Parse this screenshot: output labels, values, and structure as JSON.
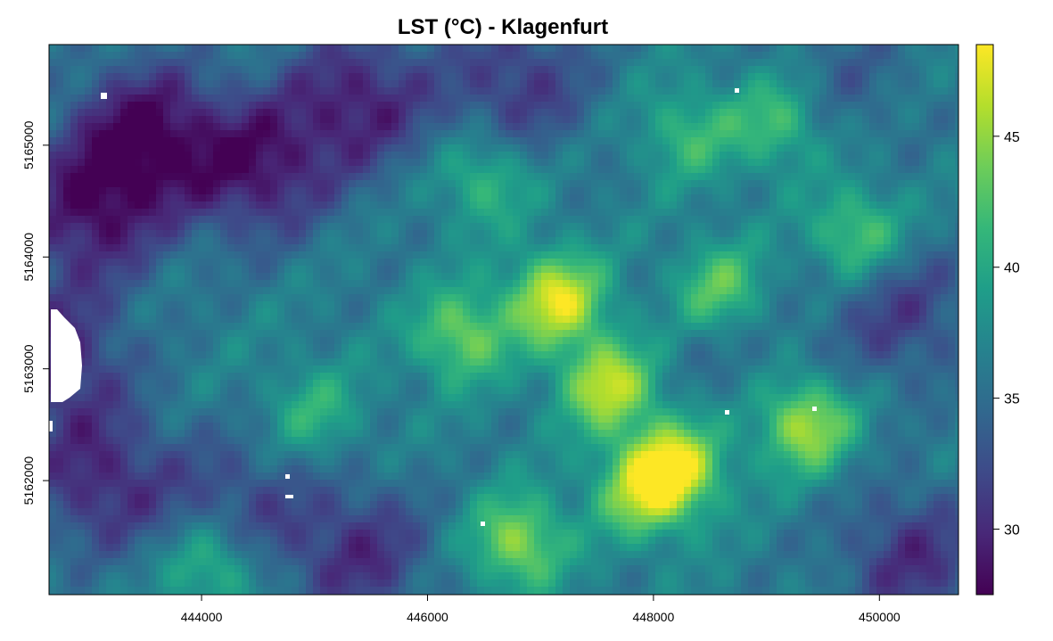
{
  "chart_data": {
    "type": "heatmap",
    "title": "LST (°C) - Klagenfurt",
    "xlabel": "",
    "ylabel": "",
    "xlim": [
      442650,
      450700
    ],
    "ylim": [
      5160980,
      5165900
    ],
    "x_ticks": [
      444000,
      446000,
      448000,
      450000
    ],
    "y_ticks": [
      5162000,
      5163000,
      5164000,
      5165000
    ],
    "x_tick_labels": [
      "444000",
      "446000",
      "448000",
      "450000"
    ],
    "y_tick_labels": [
      "5162000",
      "5163000",
      "5164000",
      "5165000"
    ],
    "colorbar": {
      "palette": "viridis",
      "range": [
        27.5,
        48.5
      ],
      "ticks": [
        30,
        35,
        40,
        45
      ],
      "tick_labels": [
        "30",
        "35",
        "40",
        "45"
      ],
      "colors": [
        "#440154",
        "#482878",
        "#3E4A89",
        "#31688E",
        "#26828E",
        "#1F9E89",
        "#35B779",
        "#6DCD59",
        "#B4DE2C",
        "#FDE725"
      ]
    },
    "grid": false,
    "legend": "right",
    "features": [
      {
        "type": "baseline",
        "value": 36.5
      },
      {
        "type": "hotspot",
        "x": 447150,
        "y": 5163620,
        "value": 47.5
      },
      {
        "type": "hotspot",
        "x": 447600,
        "y": 5162850,
        "value": 46.5
      },
      {
        "type": "hotspot",
        "x": 448200,
        "y": 5162120,
        "value": 47.0
      },
      {
        "type": "hotspot",
        "x": 449350,
        "y": 5162500,
        "value": 46.0
      },
      {
        "type": "hotspot",
        "x": 446800,
        "y": 5161450,
        "value": 45.0
      },
      {
        "type": "hotspot",
        "x": 447900,
        "y": 5161900,
        "value": 44.5
      },
      {
        "type": "hotspot",
        "x": 446300,
        "y": 5163300,
        "value": 44.0
      },
      {
        "type": "hotspot",
        "x": 448600,
        "y": 5163700,
        "value": 44.0
      },
      {
        "type": "hotspot",
        "x": 449800,
        "y": 5164200,
        "value": 43.5
      },
      {
        "type": "hotspot",
        "x": 444100,
        "y": 5161250,
        "value": 43.0
      },
      {
        "type": "hotspot",
        "x": 446500,
        "y": 5164700,
        "value": 42.0
      },
      {
        "type": "hotspot",
        "x": 449100,
        "y": 5165200,
        "value": 42.5
      },
      {
        "type": "hotspot",
        "x": 445000,
        "y": 5162600,
        "value": 41.0
      },
      {
        "type": "hotspot",
        "x": 448300,
        "y": 5165100,
        "value": 41.5
      },
      {
        "type": "cold",
        "x": 443500,
        "y": 5165100,
        "value": 28.0
      },
      {
        "type": "cold",
        "x": 444500,
        "y": 5164800,
        "value": 29.0
      },
      {
        "type": "cold",
        "x": 443000,
        "y": 5164400,
        "value": 29.0
      },
      {
        "type": "cold",
        "x": 445400,
        "y": 5165400,
        "value": 29.5
      },
      {
        "type": "cold",
        "x": 446800,
        "y": 5165550,
        "value": 31.0
      },
      {
        "type": "cold",
        "x": 443100,
        "y": 5162000,
        "value": 30.0
      },
      {
        "type": "cold",
        "x": 445400,
        "y": 5161350,
        "value": 30.5
      },
      {
        "type": "cold",
        "x": 444300,
        "y": 5161750,
        "value": 32.0
      },
      {
        "type": "cold",
        "x": 450300,
        "y": 5161300,
        "value": 30.5
      },
      {
        "type": "cold",
        "x": 450200,
        "y": 5163500,
        "value": 31.5
      },
      {
        "type": "cold",
        "x": 449700,
        "y": 5165600,
        "value": 34.0
      },
      {
        "type": "cold",
        "x": 448700,
        "y": 5163300,
        "value": 34.5
      },
      {
        "type": "cold",
        "x": 442700,
        "y": 5163100,
        "value": 30.0
      }
    ]
  }
}
